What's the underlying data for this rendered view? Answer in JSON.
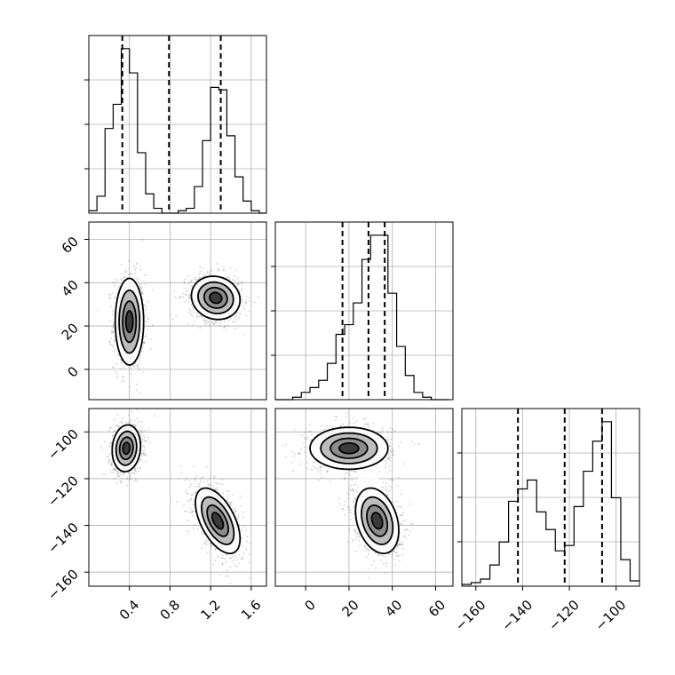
{
  "chart_data": {
    "type": "corner",
    "title": "",
    "parameters": [
      {
        "name": "",
        "range": [
          0.0,
          1.75
        ],
        "ticks": [
          0.4,
          0.8,
          1.2,
          1.6
        ],
        "tick_labels": [
          "0.4",
          "0.8",
          "1.2",
          "1.6"
        ],
        "quantiles": [
          0.33,
          0.79,
          1.3
        ]
      },
      {
        "name": "",
        "range": [
          -14,
          68
        ],
        "ticks": [
          0,
          20,
          40,
          60
        ],
        "tick_labels": [
          "0",
          "20",
          "40",
          "60"
        ],
        "quantiles": [
          17,
          29,
          36.5
        ]
      },
      {
        "name": "",
        "range": [
          -166,
          -90
        ],
        "ticks": [
          -160,
          -140,
          -120,
          -100
        ],
        "tick_labels": [
          "−160",
          "−140",
          "−120",
          "−100"
        ],
        "quantiles": [
          -142,
          -122,
          -106
        ]
      }
    ],
    "histograms": [
      {
        "parameter_index": 0,
        "bin_edges": [
          0.0,
          0.08,
          0.16,
          0.24,
          0.32,
          0.4,
          0.48,
          0.56,
          0.64,
          0.72,
          0.8,
          0.88,
          0.96,
          1.04,
          1.12,
          1.2,
          1.28,
          1.36,
          1.44,
          1.52,
          1.6,
          1.68,
          1.75
        ],
        "counts": [
          1,
          7,
          35,
          45,
          68,
          58,
          25,
          8,
          2,
          0,
          0,
          1,
          2,
          11,
          30,
          52,
          51,
          32,
          15,
          5,
          1,
          0
        ]
      },
      {
        "parameter_index": 1,
        "bin_edges": [
          -14,
          -10,
          -6,
          -2,
          2,
          6,
          10,
          14,
          18,
          22,
          26,
          30,
          34,
          38,
          42,
          46,
          50,
          54,
          58,
          62,
          66
        ],
        "counts": [
          0,
          0,
          1,
          3,
          5,
          8,
          15,
          27,
          31,
          40,
          58,
          68,
          68,
          44,
          22,
          10,
          3,
          1,
          0,
          0
        ]
      },
      {
        "parameter_index": 2,
        "bin_edges": [
          -166,
          -162,
          -158,
          -154,
          -150,
          -146,
          -142,
          -138,
          -134,
          -130,
          -126,
          -122,
          -118,
          -114,
          -110,
          -106,
          -102,
          -98,
          -94,
          -90
        ],
        "counts": [
          1,
          2,
          4,
          12,
          25,
          48,
          55,
          60,
          42,
          32,
          20,
          23,
          45,
          65,
          82,
          93,
          50,
          15,
          3
        ]
      }
    ],
    "panels_2d": [
      {
        "x_parameter": 0,
        "y_parameter": 1,
        "modes": [
          {
            "x": 0.4,
            "y": 22,
            "sx": 0.07,
            "sy": 10,
            "rho": 0.0
          },
          {
            "x": 1.25,
            "y": 33,
            "sx": 0.12,
            "sy": 5,
            "rho": -0.1
          }
        ]
      },
      {
        "x_parameter": 0,
        "y_parameter": 2,
        "modes": [
          {
            "x": 0.37,
            "y": -107,
            "sx": 0.07,
            "sy": 5,
            "rho": 0.1
          },
          {
            "x": 1.27,
            "y": -138,
            "sx": 0.11,
            "sy": 7,
            "rho": -0.55
          }
        ]
      },
      {
        "x_parameter": 1,
        "y_parameter": 2,
        "modes": [
          {
            "x": 20,
            "y": -107,
            "sx": 9,
            "sy": 4.5,
            "rho": 0.0
          },
          {
            "x": 33,
            "y": -138,
            "sx": 5,
            "sy": 7,
            "rho": -0.3
          }
        ]
      }
    ],
    "grid": true,
    "xlabel": "",
    "ylabel": ""
  }
}
